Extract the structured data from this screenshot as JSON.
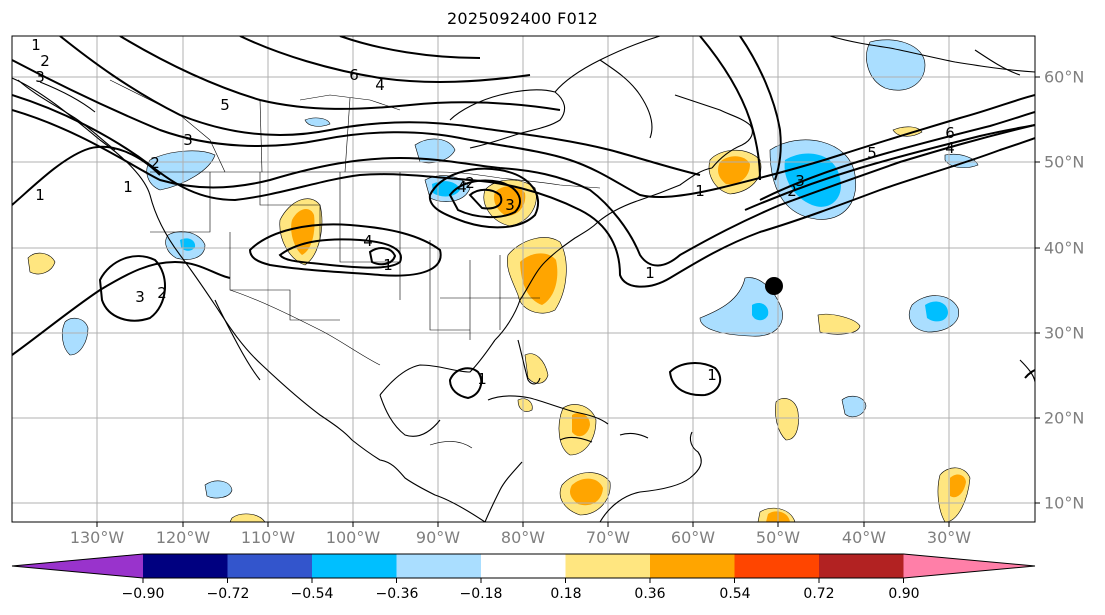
{
  "title": "2025092400 F012",
  "longitude_labels": [
    "130°W",
    "120°W",
    "110°W",
    "100°W",
    "90°W",
    "80°W",
    "70°W",
    "60°W",
    "50°W",
    "40°W",
    "30°W"
  ],
  "latitude_labels": [
    "60°N",
    "50°N",
    "40°N",
    "30°N",
    "20°N",
    "10°N"
  ],
  "contour_labels": [
    "1",
    "2",
    "3",
    "4",
    "5",
    "6",
    "4",
    "3",
    "2",
    "1",
    "1",
    "2",
    "3",
    "4",
    "1",
    "6",
    "5",
    "4",
    "3",
    "2",
    "1",
    "1",
    "2",
    "3",
    "1",
    "1"
  ],
  "colorbar": {
    "tick_labels": [
      "−0.90",
      "−0.72",
      "−0.54",
      "−0.36",
      "−0.18",
      "0.18",
      "0.36",
      "0.54",
      "0.72",
      "0.90"
    ],
    "colors": [
      "#9933cc",
      "#000080",
      "#3355cc",
      "#00bfff",
      "#aadeff",
      "#ffffff",
      "#ffe680",
      "#ffa500",
      "#ff4500",
      "#b22222",
      "#ff7fa8"
    ]
  },
  "marker": {
    "label": "black-dot",
    "lon": -50.5,
    "lat": 35.5
  },
  "shading_colors": {
    "light_blue": "#aadeff",
    "blue": "#00bfff",
    "light_orange": "#ffe680",
    "orange": "#ffa500"
  }
}
